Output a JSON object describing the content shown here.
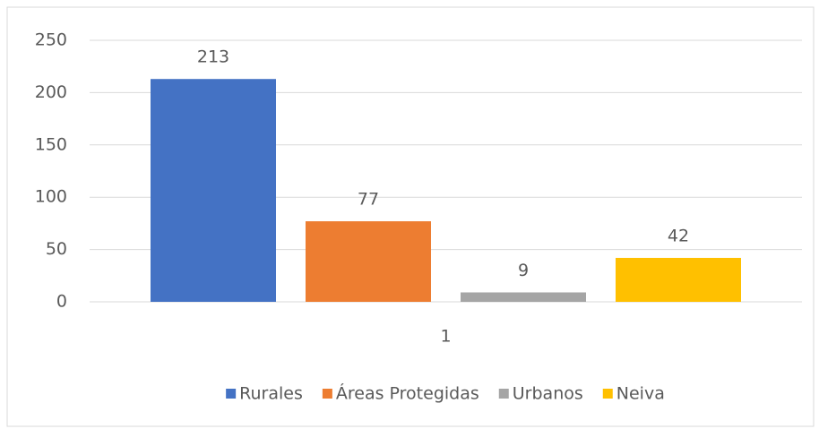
{
  "chart_data": {
    "type": "bar",
    "categories": [
      "1"
    ],
    "series": [
      {
        "name": "Rurales",
        "color": "#4472c4",
        "values": [
          213
        ]
      },
      {
        "name": "Áreas Protegidas",
        "color": "#ed7d31",
        "values": [
          77
        ]
      },
      {
        "name": "Urbanos",
        "color": "#a5a5a5",
        "values": [
          9
        ]
      },
      {
        "name": "Neiva",
        "color": "#ffc000",
        "values": [
          42
        ]
      }
    ],
    "ylim": [
      0,
      250
    ],
    "yticks": [
      0,
      50,
      100,
      150,
      200,
      250
    ],
    "grid": true,
    "legend": "bottom"
  }
}
